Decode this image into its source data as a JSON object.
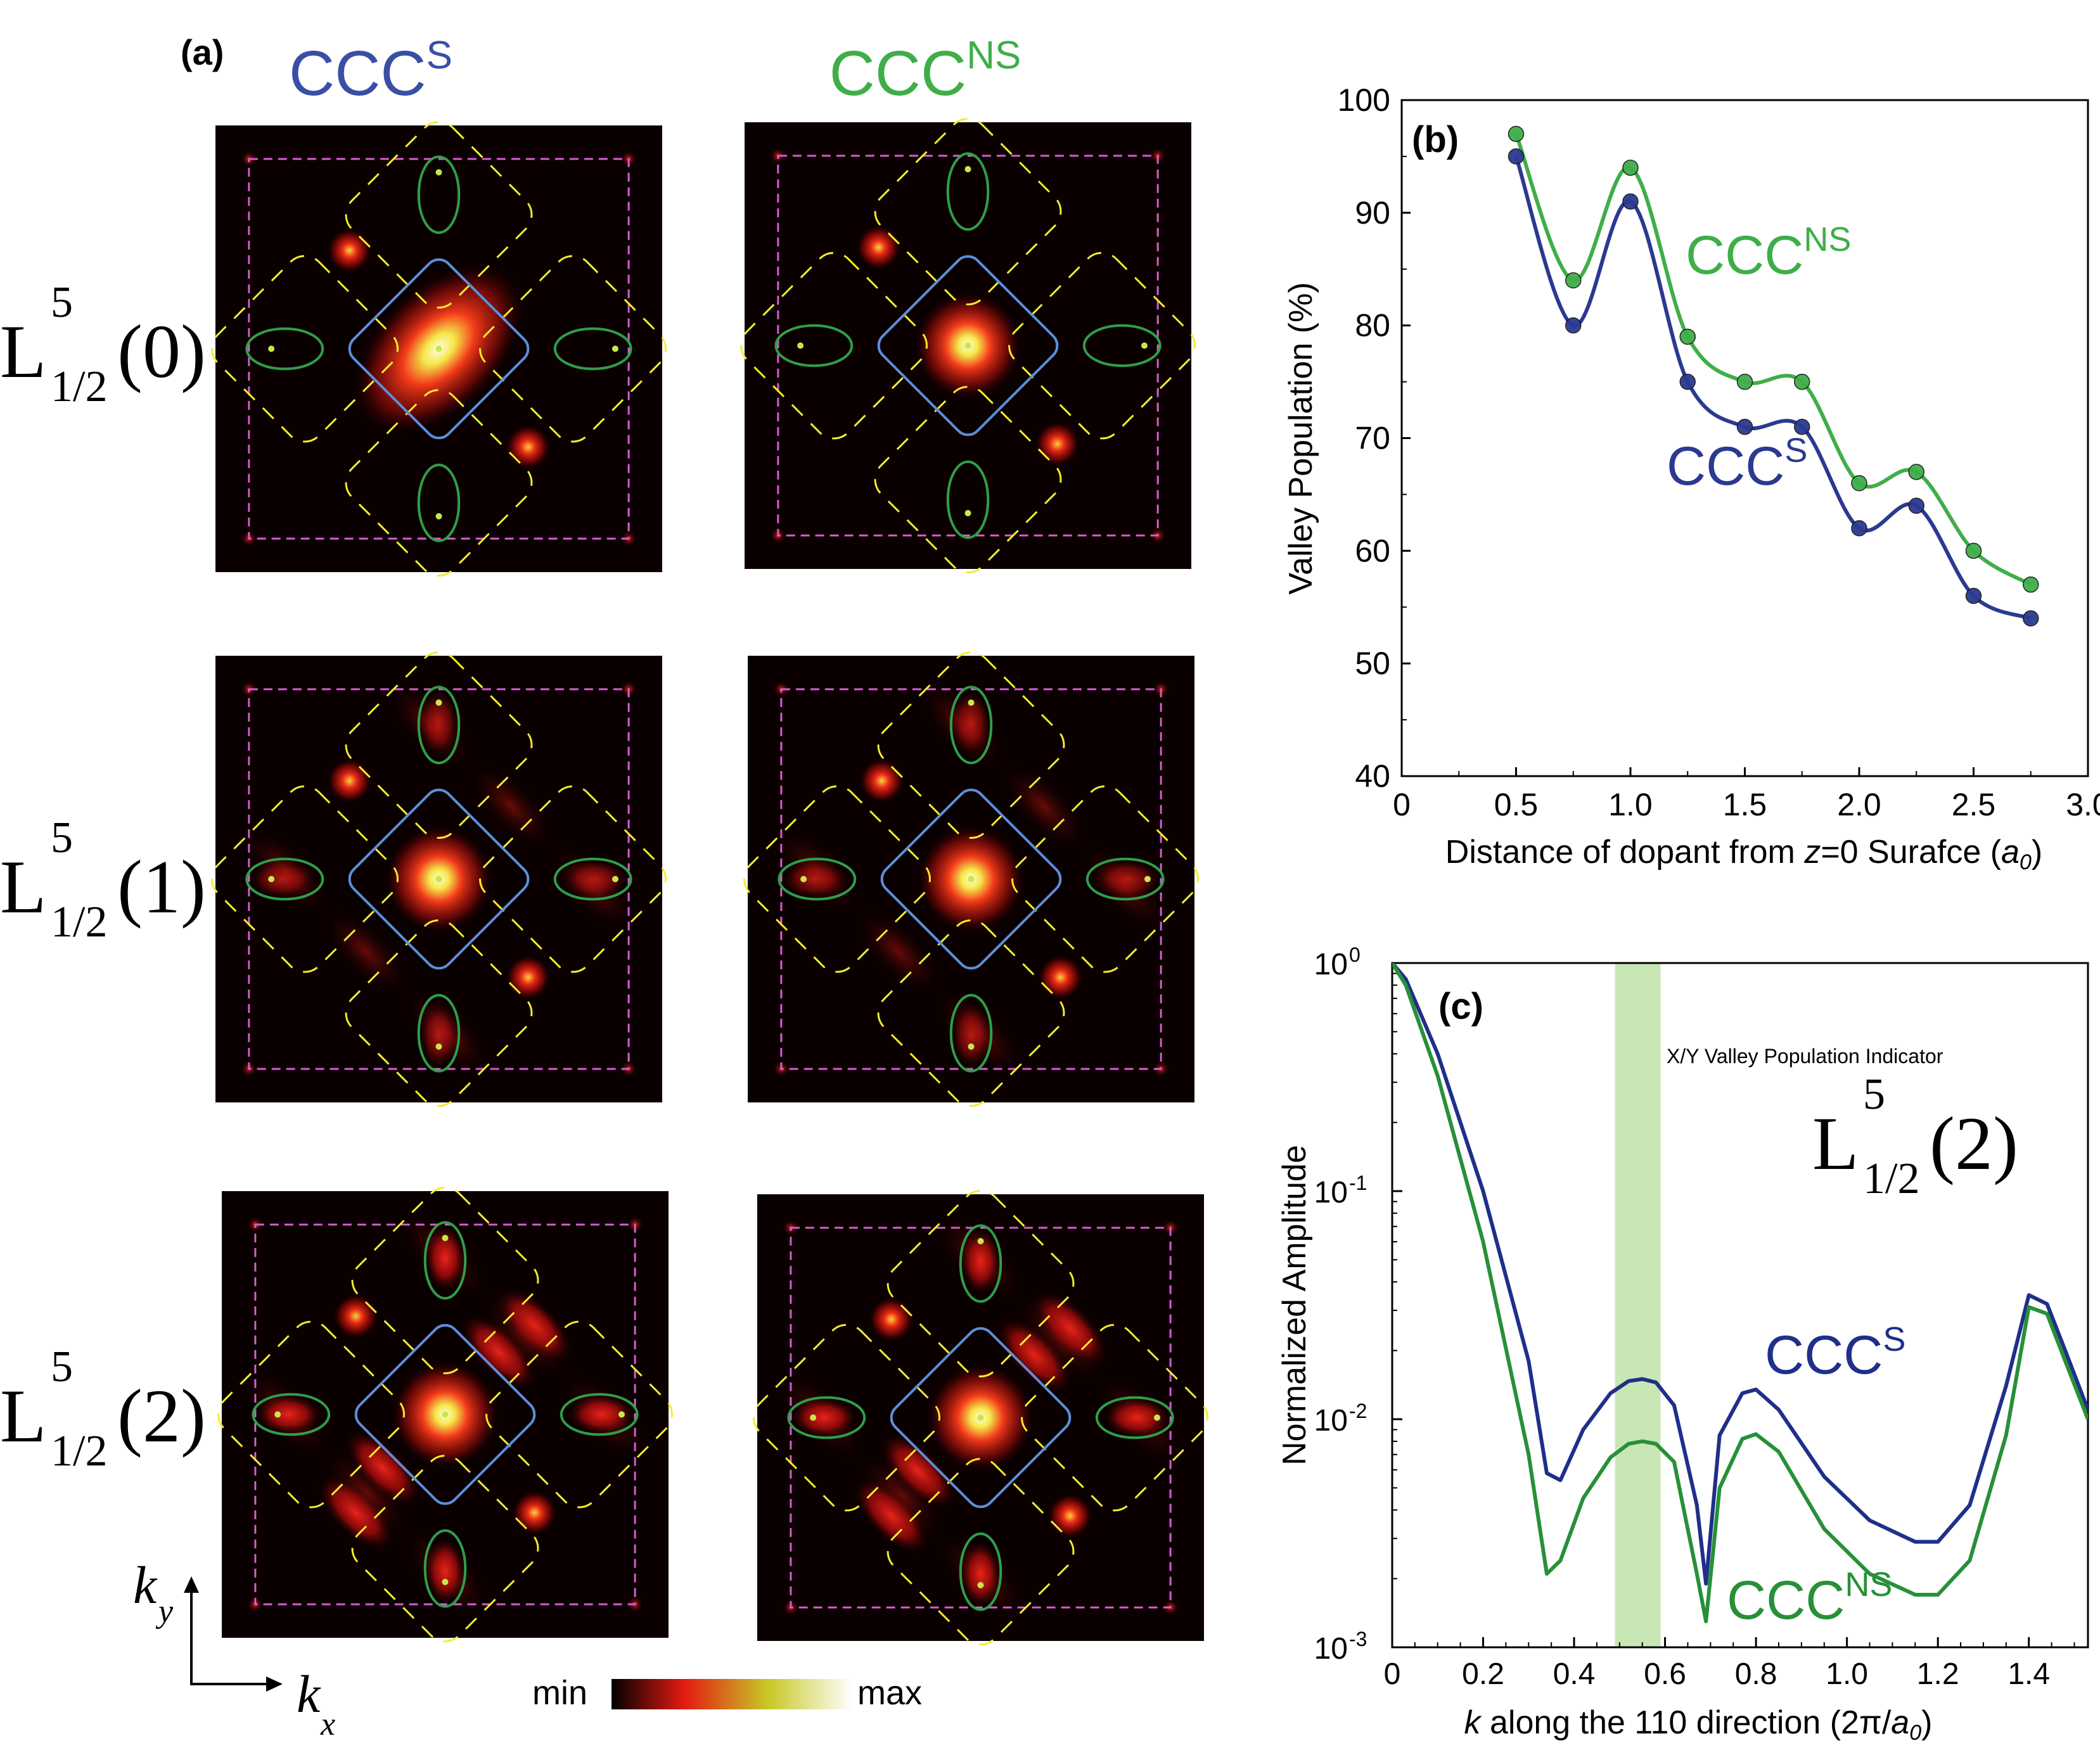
{
  "panel_a": {
    "label": "(a)",
    "col_headers": [
      "CCC",
      "CCC"
    ],
    "col_header_sup": [
      "S",
      "NS"
    ],
    "row_labels": [
      {
        "main": "L",
        "sup": "5",
        "sub": "1/2",
        "arg": "(0)"
      },
      {
        "main": "L",
        "sup": "5",
        "sub": "1/2",
        "arg": "(1)"
      },
      {
        "main": "L",
        "sup": "5",
        "sub": "1/2",
        "arg": "(2)"
      }
    ],
    "axis_ky": "k",
    "axis_ky_sub": "y",
    "axis_kx": "k",
    "axis_kx_sub": "x",
    "colorbar_min": "min",
    "colorbar_max": "max",
    "colors": {
      "ccc_s": "#3a4ea6",
      "ccc_ns": "#3fae49"
    }
  },
  "chart_data": [
    {
      "id": "b",
      "type": "line",
      "panel_label": "(b)",
      "xlabel_pre": "Distance of dopant from ",
      "xlabel_z": "z",
      "xlabel_mid": "=0 Surafce (",
      "xlabel_a": "a",
      "xlabel_a_sub": "0",
      "xlabel_post": ")",
      "ylabel": "Valley Population (%)",
      "xlim": [
        0,
        3.0
      ],
      "ylim": [
        40,
        100
      ],
      "xticks": [
        "0",
        "0.5",
        "1.0",
        "1.5",
        "2.0",
        "2.5",
        "3.0"
      ],
      "yticks": [
        "40",
        "50",
        "60",
        "70",
        "80",
        "90",
        "100"
      ],
      "x": [
        0.5,
        0.75,
        1.0,
        1.25,
        1.5,
        1.75,
        2.0,
        2.25,
        2.5,
        2.75
      ],
      "series": [
        {
          "name": "CCC",
          "sup": "NS",
          "color": "#3fae49",
          "values": [
            97,
            84,
            94,
            79,
            75,
            75,
            66,
            67,
            60,
            57
          ]
        },
        {
          "name": "CCC",
          "sup": "S",
          "color": "#2b3990",
          "values": [
            95,
            80,
            91,
            75,
            71,
            71,
            62,
            64,
            56,
            54
          ]
        }
      ]
    },
    {
      "id": "c",
      "type": "line",
      "panel_label": "(c)",
      "xlabel_k": "k",
      "xlabel_mid": " along the 110 direction (2π/",
      "xlabel_a": "a",
      "xlabel_a_sub": "0",
      "xlabel_post": ")",
      "ylabel": "Normalized Amplitude",
      "yscale": "log",
      "xlim": [
        0,
        1.53
      ],
      "ylim": [
        0.001,
        1
      ],
      "xticks": [
        "0",
        "0.2",
        "0.4",
        "0.6",
        "0.8",
        "1.0",
        "1.2",
        "1.4"
      ],
      "yticks": [
        {
          "base": "10",
          "exp": "0"
        },
        {
          "base": "10",
          "exp": "-1"
        },
        {
          "base": "10",
          "exp": "-2"
        },
        {
          "base": "10",
          "exp": "-3"
        }
      ],
      "band": {
        "x": [
          0.49,
          0.59
        ],
        "label": "X/Y Valley Population Indicator",
        "color": "#c9e6b5"
      },
      "inset_label": {
        "main": "L",
        "sup": "5",
        "sub": "1/2",
        "arg": "(2)"
      },
      "x": [
        0,
        0.03,
        0.1,
        0.2,
        0.3,
        0.34,
        0.37,
        0.42,
        0.48,
        0.52,
        0.55,
        0.58,
        0.62,
        0.67,
        0.69,
        0.72,
        0.77,
        0.8,
        0.85,
        0.95,
        1.05,
        1.15,
        1.2,
        1.27,
        1.35,
        1.4,
        1.44,
        1.48,
        1.53
      ],
      "series": [
        {
          "name": "CCC",
          "sup": "S",
          "color": "#1f2f8a",
          "values": [
            1.0,
            0.85,
            0.4,
            0.1,
            0.018,
            0.0058,
            0.0054,
            0.009,
            0.013,
            0.0147,
            0.015,
            0.0145,
            0.0115,
            0.0042,
            0.0019,
            0.0085,
            0.013,
            0.0135,
            0.011,
            0.0056,
            0.0036,
            0.0029,
            0.0029,
            0.0042,
            0.014,
            0.035,
            0.032,
            0.02,
            0.011
          ]
        },
        {
          "name": "CCC",
          "sup": "NS",
          "color": "#279038",
          "values": [
            1.0,
            0.8,
            0.32,
            0.06,
            0.007,
            0.0021,
            0.0024,
            0.0045,
            0.0068,
            0.0078,
            0.008,
            0.0078,
            0.0065,
            0.0021,
            0.0013,
            0.005,
            0.0082,
            0.0086,
            0.0072,
            0.0033,
            0.0021,
            0.0017,
            0.0017,
            0.0024,
            0.0085,
            0.031,
            0.029,
            0.018,
            0.01
          ]
        }
      ]
    }
  ]
}
